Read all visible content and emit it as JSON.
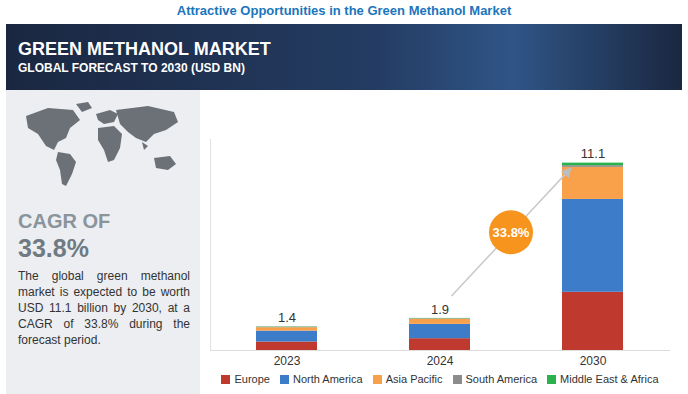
{
  "chart_data": {
    "type": "bar",
    "stacked": true,
    "supertitle": "Attractive Opportunities in the Green Methanol Market",
    "title": "GREEN METHANOL MARKET",
    "subtitle": "GLOBAL FORECAST TO 2030 (USD BN)",
    "cagr_label": "CAGR OF",
    "cagr": {
      "value": 33.8,
      "label": "33.8%"
    },
    "description": "The global green methanol market is expected to be worth USD 11.1 billion by 2030, at a CAGR of 33.8% during the forecast period.",
    "categories": [
      "2023",
      "2024",
      "2030"
    ],
    "series": [
      {
        "name": "Europe",
        "color": "#c0392f",
        "values": [
          0.5,
          0.7,
          3.45
        ]
      },
      {
        "name": "North America",
        "color": "#3d7cc9",
        "values": [
          0.65,
          0.85,
          5.5
        ]
      },
      {
        "name": "Asia Pacific",
        "color": "#f9a04a",
        "values": [
          0.2,
          0.3,
          1.9
        ]
      },
      {
        "name": "South America",
        "color": "#8c8c8c",
        "values": [
          0.03,
          0.03,
          0.1
        ]
      },
      {
        "name": "Middle East & Africa",
        "color": "#2bb24c",
        "values": [
          0.02,
          0.02,
          0.15
        ]
      }
    ],
    "totals": [
      1.4,
      1.9,
      11.1
    ],
    "ylim": [
      0,
      12.5
    ],
    "yticks": [],
    "tick_labels": "x",
    "legend": "bottom"
  }
}
